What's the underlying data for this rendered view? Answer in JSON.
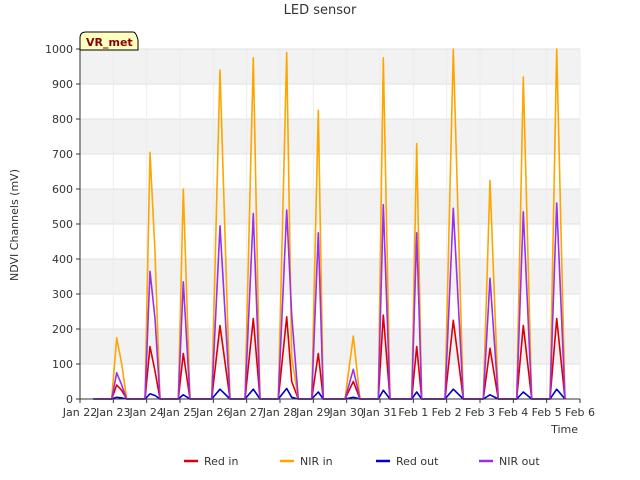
{
  "chart_data": {
    "type": "line",
    "title": "LED sensor",
    "badge": "VR_met",
    "xlabel": "Time",
    "ylabel": "NDVI Channels (mV)",
    "ylim": [
      0,
      1000
    ],
    "yticks": [
      0,
      100,
      200,
      300,
      400,
      500,
      600,
      700,
      800,
      900,
      1000
    ],
    "xlim": [
      0,
      15
    ],
    "xticks": [
      {
        "value": 0,
        "label": "Jan 22"
      },
      {
        "value": 1,
        "label": "Jan 23"
      },
      {
        "value": 2,
        "label": "Jan 24"
      },
      {
        "value": 3,
        "label": "Jan 25"
      },
      {
        "value": 4,
        "label": "Jan 26"
      },
      {
        "value": 5,
        "label": "Jan 27"
      },
      {
        "value": 6,
        "label": "Jan 28"
      },
      {
        "value": 7,
        "label": "Jan 29"
      },
      {
        "value": 8,
        "label": "Jan 30"
      },
      {
        "value": 9,
        "label": "Jan 31"
      },
      {
        "value": 10,
        "label": "Feb 1"
      },
      {
        "value": 11,
        "label": "Feb 2"
      },
      {
        "value": 12,
        "label": "Feb 3"
      },
      {
        "value": 13,
        "label": "Feb 4"
      },
      {
        "value": 14,
        "label": "Feb 5"
      },
      {
        "value": 15,
        "label": "Feb 6"
      }
    ],
    "grid": "horizontal bands",
    "legend_position": "bottom",
    "series": [
      {
        "name": "Red in",
        "color": "#dd0000",
        "x": [
          0.4,
          0.95,
          1.1,
          1.25,
          1.4,
          1.6,
          1.95,
          2.1,
          2.25,
          2.4,
          2.55,
          2.95,
          3.1,
          3.3,
          3.5,
          3.95,
          4.2,
          4.5,
          4.95,
          5.2,
          5.4,
          5.55,
          5.95,
          6.2,
          6.35,
          6.55,
          6.95,
          7.15,
          7.3,
          7.55,
          7.95,
          8.2,
          8.4,
          8.55,
          8.95,
          9.1,
          9.3,
          9.55,
          9.95,
          10.1,
          10.25,
          10.55,
          10.95,
          11.2,
          11.5,
          11.95,
          12.1,
          12.3,
          12.55,
          12.95,
          13.1,
          13.3,
          13.55,
          13.95,
          14.1,
          14.3,
          14.55
        ],
        "y": [
          0,
          0,
          40,
          25,
          0,
          0,
          0,
          150,
          80,
          0,
          0,
          0,
          130,
          0,
          0,
          0,
          210,
          0,
          0,
          230,
          0,
          0,
          0,
          235,
          50,
          0,
          0,
          130,
          0,
          0,
          0,
          50,
          0,
          0,
          0,
          240,
          0,
          0,
          0,
          150,
          0,
          0,
          0,
          225,
          0,
          0,
          0,
          145,
          0,
          0,
          0,
          210,
          0,
          0,
          0,
          230,
          0
        ]
      },
      {
        "name": "NIR in",
        "color": "#ffa500",
        "x": [
          0.4,
          0.95,
          1.1,
          1.25,
          1.4,
          1.6,
          1.95,
          2.1,
          2.25,
          2.4,
          2.55,
          2.95,
          3.1,
          3.3,
          3.5,
          3.95,
          4.2,
          4.5,
          4.95,
          5.2,
          5.4,
          5.55,
          5.95,
          6.2,
          6.35,
          6.55,
          6.95,
          7.15,
          7.3,
          7.55,
          7.95,
          8.2,
          8.4,
          8.55,
          8.95,
          9.1,
          9.3,
          9.55,
          9.95,
          10.1,
          10.25,
          10.55,
          10.95,
          11.2,
          11.5,
          11.95,
          12.1,
          12.3,
          12.55,
          12.95,
          13.1,
          13.3,
          13.55,
          13.95,
          14.1,
          14.3,
          14.55
        ],
        "y": [
          0,
          0,
          175,
          100,
          0,
          0,
          0,
          705,
          420,
          0,
          0,
          0,
          600,
          0,
          0,
          0,
          940,
          0,
          0,
          975,
          0,
          0,
          0,
          990,
          120,
          0,
          0,
          825,
          0,
          0,
          0,
          180,
          0,
          0,
          0,
          975,
          0,
          0,
          0,
          730,
          0,
          0,
          0,
          1000,
          0,
          0,
          0,
          625,
          0,
          0,
          0,
          920,
          0,
          0,
          0,
          1000,
          0
        ]
      },
      {
        "name": "Red out",
        "color": "#0000cc",
        "x": [
          0.4,
          0.95,
          1.1,
          1.25,
          1.4,
          1.6,
          1.95,
          2.1,
          2.25,
          2.4,
          2.55,
          2.95,
          3.1,
          3.3,
          3.5,
          3.95,
          4.2,
          4.5,
          4.95,
          5.2,
          5.4,
          5.55,
          5.95,
          6.2,
          6.35,
          6.55,
          6.95,
          7.15,
          7.3,
          7.55,
          7.95,
          8.2,
          8.4,
          8.55,
          8.95,
          9.1,
          9.3,
          9.55,
          9.95,
          10.1,
          10.25,
          10.55,
          10.95,
          11.2,
          11.5,
          11.95,
          12.1,
          12.3,
          12.55,
          12.95,
          13.1,
          13.3,
          13.55,
          13.95,
          14.1,
          14.3,
          14.55
        ],
        "y": [
          0,
          0,
          5,
          3,
          0,
          0,
          0,
          15,
          10,
          0,
          0,
          0,
          12,
          0,
          0,
          0,
          28,
          0,
          0,
          28,
          0,
          0,
          0,
          30,
          5,
          0,
          0,
          20,
          0,
          0,
          0,
          5,
          0,
          0,
          0,
          25,
          0,
          0,
          0,
          20,
          0,
          0,
          0,
          28,
          0,
          0,
          0,
          12,
          0,
          0,
          0,
          20,
          0,
          0,
          0,
          28,
          0
        ]
      },
      {
        "name": "NIR out",
        "color": "#9a30e8",
        "x": [
          0.4,
          0.95,
          1.1,
          1.25,
          1.4,
          1.6,
          1.95,
          2.1,
          2.25,
          2.4,
          2.55,
          2.95,
          3.1,
          3.3,
          3.5,
          3.95,
          4.2,
          4.5,
          4.95,
          5.2,
          5.4,
          5.55,
          5.95,
          6.2,
          6.35,
          6.55,
          6.95,
          7.15,
          7.3,
          7.55,
          7.95,
          8.2,
          8.4,
          8.55,
          8.95,
          9.1,
          9.3,
          9.55,
          9.95,
          10.1,
          10.25,
          10.55,
          10.95,
          11.2,
          11.5,
          11.95,
          12.1,
          12.3,
          12.55,
          12.95,
          13.1,
          13.3,
          13.55,
          13.95,
          14.1,
          14.3,
          14.55
        ],
        "y": [
          0,
          0,
          75,
          40,
          0,
          0,
          0,
          365,
          230,
          0,
          0,
          0,
          335,
          0,
          0,
          0,
          495,
          0,
          0,
          530,
          0,
          0,
          0,
          540,
          240,
          0,
          0,
          475,
          0,
          0,
          0,
          85,
          0,
          0,
          0,
          555,
          0,
          0,
          0,
          475,
          0,
          0,
          0,
          545,
          0,
          0,
          0,
          345,
          0,
          0,
          0,
          535,
          0,
          0,
          0,
          560,
          0
        ]
      }
    ]
  }
}
